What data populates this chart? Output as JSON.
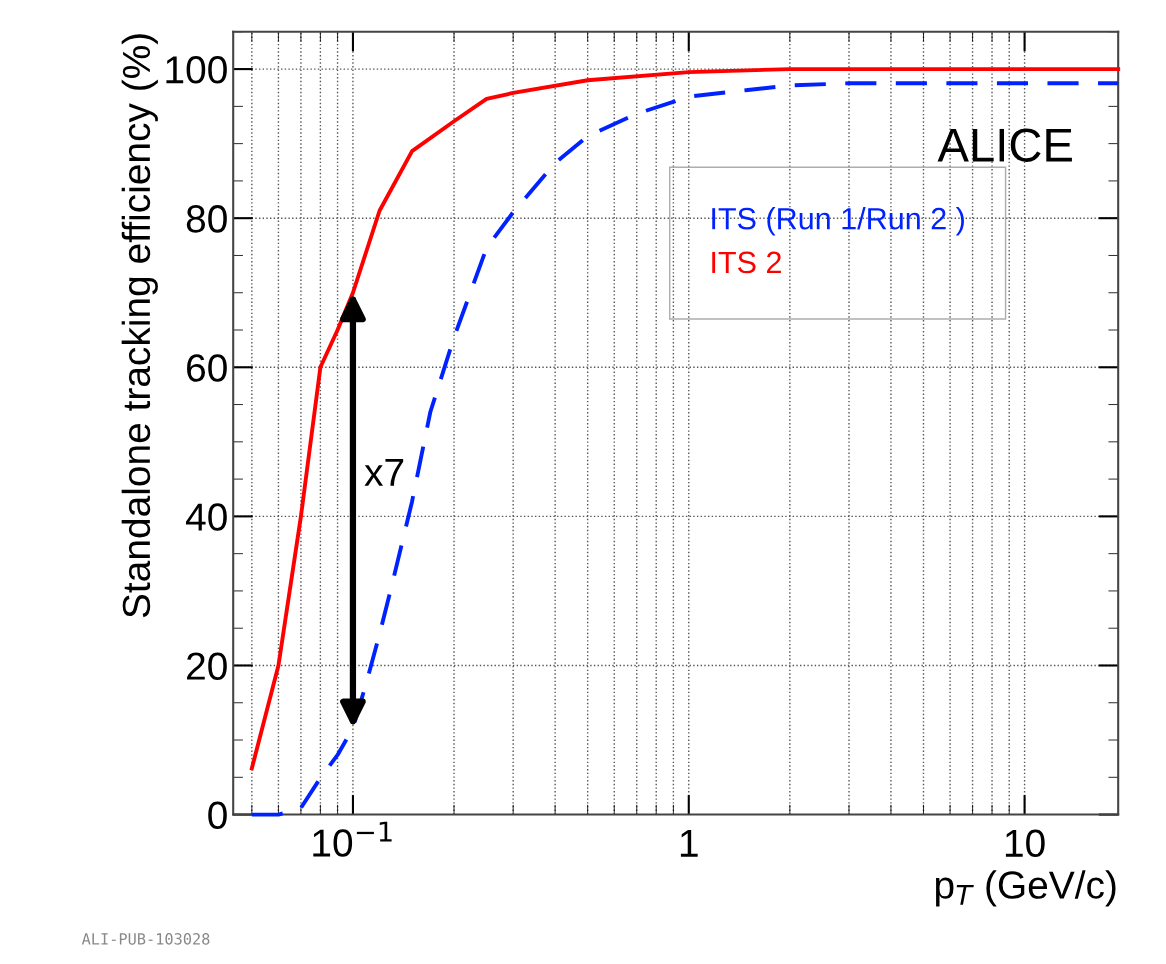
{
  "chart_data": {
    "type": "line",
    "xlabel": "p$_{T}$ (GeV/c)",
    "ylabel": "Standalone tracking efficiency (%)",
    "log": "x",
    "xlim": [
      0.044,
      19
    ],
    "xticks": [
      {
        "value": 0.1,
        "label": "10$^{−1}$"
      },
      1,
      10
    ],
    "ylim": [
      0,
      105
    ],
    "yticks": [
      0,
      20,
      40,
      60,
      80,
      100
    ],
    "grid": true,
    "legend": "right",
    "series": [
      {
        "name": "ITS (Run 1/Run 2 )",
        "color": "#0022ff",
        "line_style": "dashed",
        "x": [
          0.05,
          0.06,
          0.07,
          0.08,
          0.09,
          0.1,
          0.11,
          0.12,
          0.13,
          0.15,
          0.17,
          0.2,
          0.25,
          0.3,
          0.4,
          0.5,
          0.7,
          1,
          1.5,
          2,
          3,
          19
        ],
        "values": [
          0,
          0,
          0.9,
          4.9,
          8,
          11.6,
          17.9,
          24.2,
          30.4,
          42,
          54,
          64,
          76,
          80.8,
          87.4,
          91,
          94,
          96.3,
          97.2,
          97.8,
          98.1,
          98.1
        ]
      },
      {
        "name": "ITS 2",
        "color": "#ff0000",
        "line_style": "solid",
        "x": [
          0.05,
          0.06,
          0.07,
          0.08,
          0.09,
          0.1,
          0.12,
          0.15,
          0.2,
          0.25,
          0.3,
          0.5,
          1,
          2,
          19
        ],
        "values": [
          6.2,
          20,
          40,
          60,
          65,
          70,
          81,
          89,
          93,
          96,
          96.8,
          98.5,
          99.6,
          100,
          100
        ]
      }
    ],
    "annotations": [
      "x7",
      "ALICE",
      "ALI-PUB-103028"
    ]
  }
}
